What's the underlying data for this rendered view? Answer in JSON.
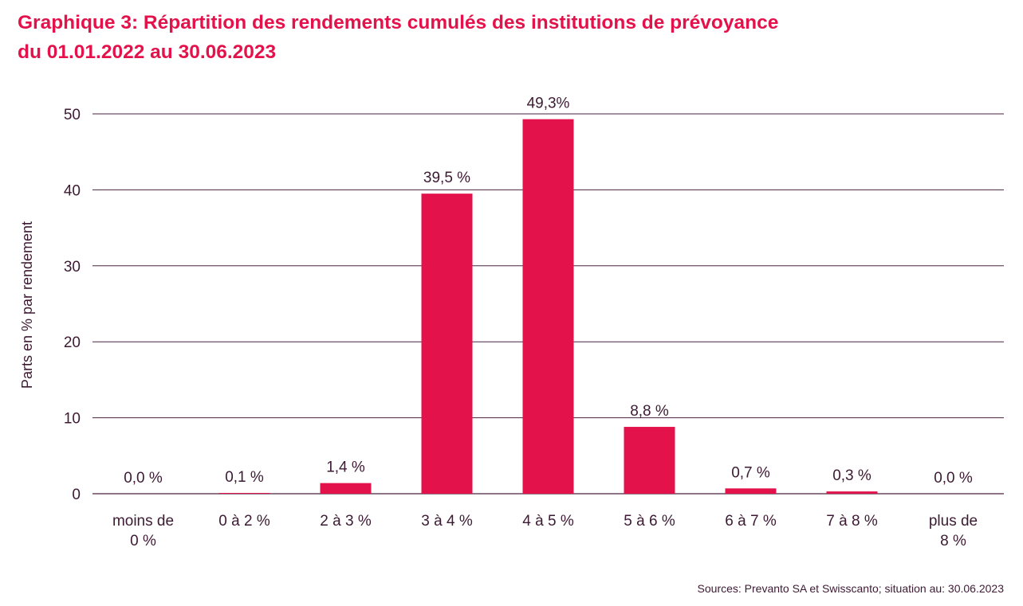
{
  "title": {
    "line1": "Graphique 3: Répartition des rendements cumulés des institutions de prévoyance",
    "line2": "du 01.01.2022 au 30.06.2023"
  },
  "source": "Sources: Prevanto SA et Swisscanto; situation au: 30.06.2023",
  "colors": {
    "bar": "#e3124a",
    "title": "#e3124a",
    "text": "#3d1a33",
    "grid": "#4a2340"
  },
  "chart_data": {
    "type": "bar",
    "title": "Graphique 3: Répartition des rendements cumulés des institutions de prévoyance du 01.01.2022 au 30.06.2023",
    "ylabel": "Parts en % par rendement",
    "xlabel": "",
    "ylim": [
      0,
      50
    ],
    "yticks": [
      0,
      10,
      20,
      30,
      40,
      50
    ],
    "grid": true,
    "categories": [
      [
        "moins de",
        "0 %"
      ],
      [
        "0 à 2 %"
      ],
      [
        "2 à 3 %"
      ],
      [
        "3 à 4 %"
      ],
      [
        "4 à 5 %"
      ],
      [
        "5 à 6 %"
      ],
      [
        "6 à 7 %"
      ],
      [
        "7 à 8 %"
      ],
      [
        "plus de",
        "8 %"
      ]
    ],
    "values": [
      0.0,
      0.1,
      1.4,
      39.5,
      49.3,
      8.8,
      0.7,
      0.3,
      0.0
    ],
    "value_labels": [
      "0,0 %",
      "0,1 %",
      "1,4 %",
      "39,5 %",
      "49,3%",
      "8,8 %",
      "0,7 %",
      "0,3 %",
      "0,0 %"
    ]
  }
}
